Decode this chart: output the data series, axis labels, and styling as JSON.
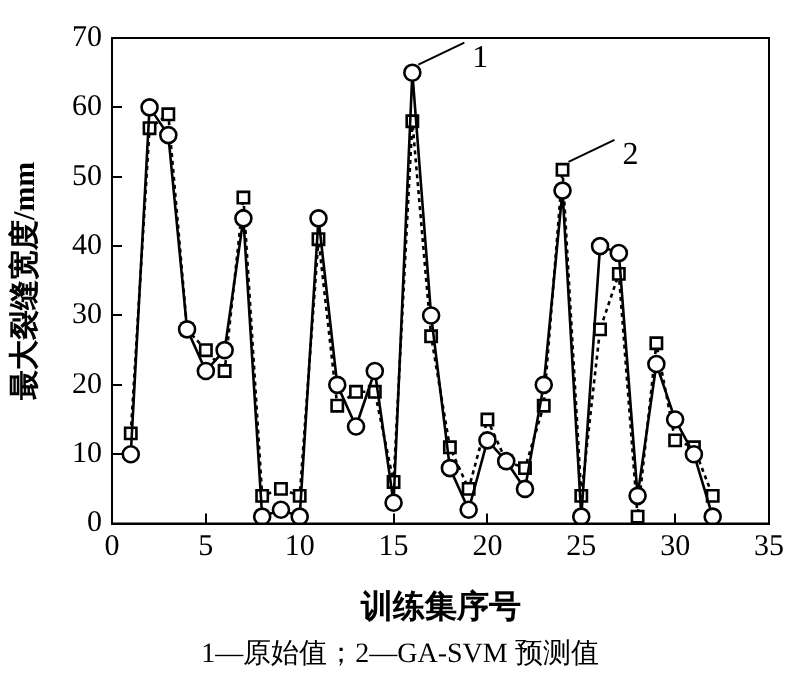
{
  "chart_data": {
    "type": "line",
    "xlabel": "训练集序号",
    "ylabel": "最大裂缝宽度/mm",
    "x": [
      1,
      2,
      3,
      4,
      5,
      6,
      7,
      8,
      9,
      10,
      11,
      12,
      13,
      14,
      15,
      16,
      17,
      18,
      19,
      20,
      21,
      22,
      23,
      24,
      25,
      26,
      27,
      28,
      29,
      30,
      31,
      32
    ],
    "series": [
      {
        "color": "#000000",
        "marker": "circle",
        "line_style": "solid",
        "values": [
          10,
          60,
          56,
          28,
          22,
          25,
          44,
          1,
          2,
          1,
          44,
          20,
          14,
          22,
          3,
          65,
          30,
          8,
          2,
          12,
          9,
          5,
          20,
          48,
          1,
          40,
          39,
          4,
          23,
          15,
          10,
          1
        ]
      },
      {
        "color": "#000000",
        "marker": "square",
        "line_style": "dotted",
        "values": [
          13,
          57,
          59,
          28,
          25,
          22,
          47,
          4,
          5,
          4,
          41,
          17,
          19,
          19,
          6,
          58,
          27,
          11,
          5,
          15,
          9,
          8,
          17,
          51,
          4,
          28,
          36,
          1,
          26,
          12,
          11,
          4
        ]
      }
    ],
    "xlim": [
      0,
      35
    ],
    "xticks": [
      0,
      5,
      10,
      15,
      20,
      25,
      30,
      35
    ],
    "ylim": [
      0,
      70
    ],
    "yticks": [
      0,
      10,
      20,
      30,
      40,
      50,
      60,
      70
    ],
    "grid": false,
    "legend": false,
    "annotations": [
      {
        "text": "1",
        "x": 16,
        "y": 65
      },
      {
        "text": "2",
        "x": 24,
        "y": 51
      },
      "1—原始值；2—GA-SVM 预测值"
    ]
  }
}
